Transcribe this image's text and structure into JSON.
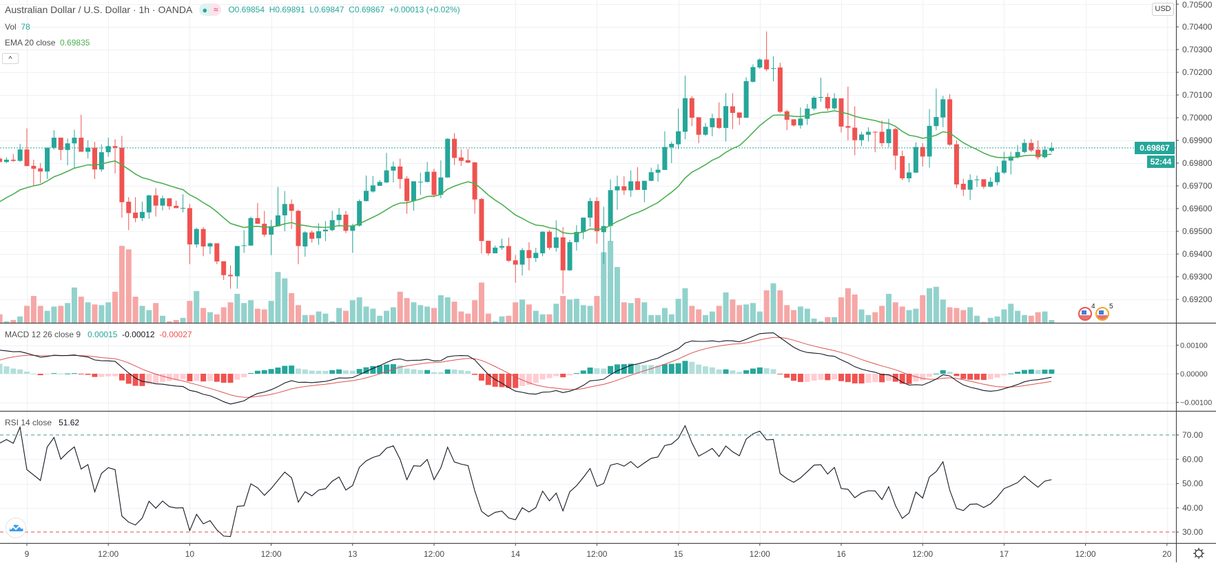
{
  "header": {
    "title": "Australian Dollar / U.S. Dollar · 1h · OANDA",
    "pill_left_icon": "market-open-dot",
    "pill_right_icon": "≈",
    "open": "O0.69854",
    "high": "H0.69891",
    "low": "L0.69847",
    "close": "C0.69867",
    "change": "+0.00013 (+0.02%)"
  },
  "legend": {
    "vol_label": "Vol",
    "vol_value": "78",
    "ema_label": "EMA 20 close",
    "ema_value": "0.69835",
    "collapse_icon": "^",
    "macd_label": "MACD 12 26 close 9",
    "macd_hist": "0.00015",
    "macd_line": "-0.00012",
    "macd_signal": "-0.00027",
    "rsi_label": "RSI 14 close",
    "rsi_value": "51.62"
  },
  "price_axis": {
    "currency": "USD",
    "ticks": [
      "0.70500",
      "0.70400",
      "0.70300",
      "0.70200",
      "0.70100",
      "0.70000",
      "0.69900",
      "0.69800",
      "0.69700",
      "0.69600",
      "0.69500",
      "0.69400",
      "0.69300",
      "0.69200"
    ],
    "last_price": "0.69867",
    "countdown": "52:44"
  },
  "macd_axis": {
    "ticks": [
      "0.00100",
      "0.00000",
      "−0.00100"
    ]
  },
  "rsi_axis": {
    "ticks": [
      "70.00",
      "60.00",
      "50.00",
      "40.00",
      "30.00"
    ]
  },
  "events": [
    {
      "icon": "us-flag-event",
      "count": "4"
    },
    {
      "icon": "us-flag-event",
      "count": "5"
    }
  ],
  "colors": {
    "up": "#26a69a",
    "down": "#ef5350",
    "vol_up": "#92d2cc",
    "vol_down": "#f5a7a6",
    "ema": "#4caf50",
    "macd": "#131722",
    "signal": "#d9534f",
    "hist_up_strong": "#26a69a",
    "hist_up_weak": "#b2dfdb",
    "hist_down_strong": "#ef5350",
    "hist_down_weak": "#ffcdd2",
    "rsi": "#131722",
    "rsi_upper": "#4e9a8e",
    "rsi_lower": "#d9534f"
  },
  "chart_data": {
    "type": "candlestick",
    "interval": "1h",
    "x_ticks": [
      "9",
      "12:00",
      "10",
      "12:00",
      "13",
      "12:00",
      "14",
      "12:00",
      "15",
      "12:00",
      "16",
      "12:00",
      "17",
      "12:00",
      "20"
    ],
    "ylim": [
      0.6915,
      0.7051
    ],
    "grid": true,
    "columns": [
      "open",
      "high",
      "low",
      "close",
      "volume"
    ],
    "candles": [
      [
        0.6982,
        0.6983,
        0.698,
        0.69805,
        240
      ],
      [
        0.69805,
        0.69825,
        0.698,
        0.69815,
        40
      ],
      [
        0.69815,
        0.6984,
        0.69805,
        0.6981,
        80
      ],
      [
        0.6981,
        0.69885,
        0.69805,
        0.6986,
        180
      ],
      [
        0.6986,
        0.69953,
        0.69787,
        0.69787,
        480
      ],
      [
        0.69788,
        0.69815,
        0.697,
        0.69775,
        760
      ],
      [
        0.69777,
        0.698,
        0.69712,
        0.69763,
        480
      ],
      [
        0.69763,
        0.69868,
        0.6973,
        0.69868,
        340
      ],
      [
        0.69868,
        0.69945,
        0.6986,
        0.69912,
        460
      ],
      [
        0.69912,
        0.69912,
        0.69813,
        0.69858,
        480
      ],
      [
        0.69858,
        0.69908,
        0.6979,
        0.69887,
        560
      ],
      [
        0.69887,
        0.69947,
        0.6978,
        0.69912,
        1000
      ],
      [
        0.69912,
        0.70013,
        0.6985,
        0.6985,
        740
      ],
      [
        0.6985,
        0.699,
        0.6982,
        0.69868,
        580
      ],
      [
        0.69868,
        0.69893,
        0.6973,
        0.69772,
        520
      ],
      [
        0.69772,
        0.69882,
        0.69762,
        0.69848,
        500
      ],
      [
        0.69848,
        0.69912,
        0.69828,
        0.69875,
        580
      ],
      [
        0.69875,
        0.69905,
        0.69755,
        0.69868,
        880
      ],
      [
        0.69868,
        0.6992,
        0.6956,
        0.69628,
        2180
      ],
      [
        0.6963,
        0.6965,
        0.69505,
        0.6958,
        2080
      ],
      [
        0.69582,
        0.6965,
        0.6954,
        0.69558,
        740
      ],
      [
        0.69558,
        0.6963,
        0.69545,
        0.69585,
        480
      ],
      [
        0.69583,
        0.6966,
        0.69555,
        0.69658,
        360
      ],
      [
        0.69658,
        0.6969,
        0.69565,
        0.69613,
        560
      ],
      [
        0.69613,
        0.69657,
        0.69592,
        0.69645,
        200
      ],
      [
        0.69645,
        0.69645,
        0.69595,
        0.6961,
        40
      ],
      [
        0.69612,
        0.69635,
        0.69602,
        0.69602,
        80
      ],
      [
        0.69602,
        0.69663,
        0.69583,
        0.69603,
        140
      ],
      [
        0.69602,
        0.6962,
        0.69355,
        0.69442,
        620
      ],
      [
        0.69442,
        0.69515,
        0.69428,
        0.6951,
        900
      ],
      [
        0.6951,
        0.69518,
        0.6939,
        0.69433,
        420
      ],
      [
        0.69433,
        0.6945,
        0.694,
        0.69447,
        300
      ],
      [
        0.69447,
        0.69447,
        0.69355,
        0.69367,
        240
      ],
      [
        0.69368,
        0.69368,
        0.69285,
        0.69307,
        440
      ],
      [
        0.69308,
        0.6935,
        0.69247,
        0.69302,
        580
      ],
      [
        0.69302,
        0.69435,
        0.69247,
        0.69435,
        820
      ],
      [
        0.69435,
        0.69505,
        0.69405,
        0.69438,
        560
      ],
      [
        0.69437,
        0.69565,
        0.69437,
        0.69558,
        640
      ],
      [
        0.69558,
        0.69625,
        0.69533,
        0.69533,
        400
      ],
      [
        0.69533,
        0.6959,
        0.69475,
        0.69485,
        380
      ],
      [
        0.69485,
        0.6955,
        0.69395,
        0.69522,
        620
      ],
      [
        0.69522,
        0.69695,
        0.6952,
        0.6957,
        1440
      ],
      [
        0.6957,
        0.69677,
        0.695,
        0.6962,
        1260
      ],
      [
        0.6962,
        0.6964,
        0.6951,
        0.6959,
        840
      ],
      [
        0.6959,
        0.69595,
        0.69355,
        0.69435,
        500
      ],
      [
        0.69433,
        0.695,
        0.69388,
        0.69495,
        220
      ],
      [
        0.69495,
        0.69503,
        0.6945,
        0.69467,
        220
      ],
      [
        0.69469,
        0.69535,
        0.6944,
        0.695,
        320
      ],
      [
        0.695,
        0.69545,
        0.69457,
        0.69507,
        260
      ],
      [
        0.69505,
        0.6959,
        0.695,
        0.69549,
        40
      ],
      [
        0.69549,
        0.69603,
        0.6952,
        0.69573,
        420
      ],
      [
        0.69573,
        0.6959,
        0.69492,
        0.69502,
        340
      ],
      [
        0.69502,
        0.69533,
        0.69405,
        0.69525,
        640
      ],
      [
        0.69525,
        0.6964,
        0.6952,
        0.69633,
        720
      ],
      [
        0.69633,
        0.69745,
        0.6963,
        0.69678,
        460
      ],
      [
        0.69675,
        0.69743,
        0.6967,
        0.69702,
        400
      ],
      [
        0.697,
        0.69725,
        0.697,
        0.69717,
        200
      ],
      [
        0.69715,
        0.69845,
        0.69712,
        0.69768,
        340
      ],
      [
        0.69767,
        0.69807,
        0.69715,
        0.69785,
        440
      ],
      [
        0.69785,
        0.6982,
        0.69687,
        0.6973,
        880
      ],
      [
        0.69732,
        0.69743,
        0.69577,
        0.69633,
        700
      ],
      [
        0.69633,
        0.6972,
        0.6959,
        0.6972,
        580
      ],
      [
        0.69718,
        0.69758,
        0.6966,
        0.69718,
        500
      ],
      [
        0.69717,
        0.69805,
        0.69715,
        0.69762,
        460
      ],
      [
        0.69762,
        0.69775,
        0.6965,
        0.6966,
        420
      ],
      [
        0.6966,
        0.69812,
        0.69645,
        0.69737,
        780
      ],
      [
        0.69737,
        0.6991,
        0.69735,
        0.69907,
        720
      ],
      [
        0.69907,
        0.69932,
        0.69792,
        0.69823,
        600
      ],
      [
        0.69825,
        0.6986,
        0.69788,
        0.6981,
        320
      ],
      [
        0.69813,
        0.69862,
        0.698,
        0.69802,
        260
      ],
      [
        0.69803,
        0.69805,
        0.69577,
        0.6964,
        640
      ],
      [
        0.69642,
        0.69647,
        0.69402,
        0.69457,
        1140
      ],
      [
        0.69458,
        0.69458,
        0.69393,
        0.69403,
        260
      ],
      [
        0.69403,
        0.69437,
        0.69403,
        0.69428,
        40
      ],
      [
        0.69428,
        0.69467,
        0.69418,
        0.69435,
        180
      ],
      [
        0.69435,
        0.69472,
        0.69365,
        0.6937,
        200
      ],
      [
        0.69372,
        0.69395,
        0.69273,
        0.69353,
        580
      ],
      [
        0.69353,
        0.69427,
        0.69305,
        0.69417,
        660
      ],
      [
        0.69417,
        0.69452,
        0.69328,
        0.69382,
        520
      ],
      [
        0.69382,
        0.69427,
        0.69365,
        0.69405,
        340
      ],
      [
        0.69403,
        0.695,
        0.6939,
        0.69498,
        240
      ],
      [
        0.69498,
        0.69505,
        0.69418,
        0.69427,
        240
      ],
      [
        0.69427,
        0.69548,
        0.6941,
        0.69473,
        540
      ],
      [
        0.69473,
        0.69518,
        0.69225,
        0.69328,
        760
      ],
      [
        0.69328,
        0.69462,
        0.69325,
        0.69452,
        660
      ],
      [
        0.69452,
        0.69527,
        0.69415,
        0.69497,
        680
      ],
      [
        0.69497,
        0.6956,
        0.69465,
        0.6956,
        500
      ],
      [
        0.6956,
        0.69647,
        0.6952,
        0.69633,
        480
      ],
      [
        0.69633,
        0.6965,
        0.69445,
        0.695,
        760
      ],
      [
        0.69496,
        0.69608,
        0.69355,
        0.69523,
        2000
      ],
      [
        0.69523,
        0.69728,
        0.69455,
        0.69681,
        2320
      ],
      [
        0.6968,
        0.69745,
        0.69595,
        0.69698,
        1580
      ],
      [
        0.69698,
        0.69742,
        0.6966,
        0.6968,
        580
      ],
      [
        0.6968,
        0.69768,
        0.69652,
        0.6972,
        560
      ],
      [
        0.6972,
        0.69782,
        0.69682,
        0.69682,
        700
      ],
      [
        0.69682,
        0.69722,
        0.69628,
        0.69722,
        580
      ],
      [
        0.69722,
        0.6978,
        0.6972,
        0.6976,
        220
      ],
      [
        0.69758,
        0.69795,
        0.69718,
        0.69771,
        220
      ],
      [
        0.6977,
        0.6994,
        0.6977,
        0.69871,
        420
      ],
      [
        0.6987,
        0.69895,
        0.698,
        0.69885,
        240
      ],
      [
        0.69883,
        0.7004,
        0.69862,
        0.6994,
        680
      ],
      [
        0.69938,
        0.70185,
        0.69905,
        0.70086,
        980
      ],
      [
        0.70086,
        0.70095,
        0.69963,
        0.7,
        480
      ],
      [
        0.70002,
        0.70002,
        0.69888,
        0.69925,
        380
      ],
      [
        0.69925,
        0.69977,
        0.6992,
        0.6996,
        220
      ],
      [
        0.69958,
        0.70017,
        0.69918,
        0.69998,
        320
      ],
      [
        0.69998,
        0.70068,
        0.6995,
        0.69955,
        480
      ],
      [
        0.69955,
        0.70108,
        0.69895,
        0.70051,
        860
      ],
      [
        0.7005,
        0.70108,
        0.6995,
        0.70021,
        660
      ],
      [
        0.70023,
        0.70023,
        0.69968,
        0.7,
        500
      ],
      [
        0.7,
        0.70178,
        0.7,
        0.70161,
        520
      ],
      [
        0.70158,
        0.70235,
        0.70155,
        0.70223,
        560
      ],
      [
        0.70221,
        0.70262,
        0.70215,
        0.70256,
        320
      ],
      [
        0.70256,
        0.7038,
        0.70205,
        0.70213,
        920
      ],
      [
        0.70215,
        0.7027,
        0.7016,
        0.70218,
        1120
      ],
      [
        0.70221,
        0.70242,
        0.7002,
        0.70026,
        920
      ],
      [
        0.70028,
        0.70035,
        0.69945,
        0.69991,
        500
      ],
      [
        0.69993,
        0.69993,
        0.6996,
        0.69966,
        360
      ],
      [
        0.69966,
        0.70045,
        0.69952,
        0.69996,
        460
      ],
      [
        0.69995,
        0.7006,
        0.69968,
        0.7004,
        400
      ],
      [
        0.7004,
        0.70095,
        0.70032,
        0.70088,
        120
      ],
      [
        0.70088,
        0.70176,
        0.7007,
        0.70091,
        40
      ],
      [
        0.70091,
        0.70108,
        0.7003,
        0.70041,
        160
      ],
      [
        0.70041,
        0.70108,
        0.70035,
        0.70085,
        160
      ],
      [
        0.70085,
        0.70085,
        0.69935,
        0.69961,
        720
      ],
      [
        0.69963,
        0.70137,
        0.699,
        0.69956,
        980
      ],
      [
        0.69956,
        0.7005,
        0.69835,
        0.69901,
        800
      ],
      [
        0.69901,
        0.69938,
        0.69875,
        0.69926,
        380
      ],
      [
        0.69925,
        0.69958,
        0.69895,
        0.69938,
        220
      ],
      [
        0.69938,
        0.6994,
        0.69848,
        0.69937,
        300
      ],
      [
        0.69938,
        0.69988,
        0.69873,
        0.69888,
        480
      ],
      [
        0.69888,
        0.69995,
        0.6987,
        0.6995,
        820
      ],
      [
        0.6995,
        0.69955,
        0.6977,
        0.69833,
        580
      ],
      [
        0.69831,
        0.69855,
        0.69725,
        0.69733,
        460
      ],
      [
        0.69733,
        0.698,
        0.69716,
        0.69759,
        360
      ],
      [
        0.69758,
        0.69892,
        0.69758,
        0.69871,
        400
      ],
      [
        0.69871,
        0.69888,
        0.69785,
        0.69829,
        780
      ],
      [
        0.69829,
        0.70038,
        0.6978,
        0.69964,
        980
      ],
      [
        0.69963,
        0.70128,
        0.69945,
        0.70003,
        1020
      ],
      [
        0.70001,
        0.70096,
        0.69958,
        0.70081,
        660
      ],
      [
        0.70081,
        0.70103,
        0.69876,
        0.69881,
        440
      ],
      [
        0.69883,
        0.699,
        0.6969,
        0.69706,
        420
      ],
      [
        0.69709,
        0.69731,
        0.69655,
        0.69683,
        360
      ],
      [
        0.69683,
        0.69751,
        0.69638,
        0.69726,
        440
      ],
      [
        0.69727,
        0.69745,
        0.69695,
        0.69728,
        200
      ],
      [
        0.69729,
        0.69729,
        0.69687,
        0.69696,
        20
      ],
      [
        0.69696,
        0.69738,
        0.69693,
        0.69718,
        140
      ],
      [
        0.69716,
        0.69786,
        0.69702,
        0.69759,
        180
      ],
      [
        0.69758,
        0.6985,
        0.69752,
        0.69811,
        380
      ],
      [
        0.69811,
        0.6985,
        0.6975,
        0.69829,
        540
      ],
      [
        0.69826,
        0.6988,
        0.6982,
        0.69849,
        340
      ],
      [
        0.69849,
        0.69906,
        0.69843,
        0.69889,
        220
      ],
      [
        0.69889,
        0.69906,
        0.69848,
        0.69856,
        200
      ],
      [
        0.69859,
        0.699,
        0.69816,
        0.69826,
        300
      ],
      [
        0.69826,
        0.69875,
        0.69821,
        0.69859,
        320
      ],
      [
        0.69854,
        0.69891,
        0.69847,
        0.69867,
        78
      ]
    ],
    "indicators": {
      "ema": {
        "period": 20,
        "source": "close"
      },
      "macd": {
        "fast": 12,
        "slow": 26,
        "signal": 9,
        "ylim": [
          -0.0013,
          0.0016
        ]
      },
      "rsi": {
        "period": 14,
        "upper": 70,
        "lower": 30,
        "ylim": [
          25,
          80
        ]
      }
    }
  }
}
